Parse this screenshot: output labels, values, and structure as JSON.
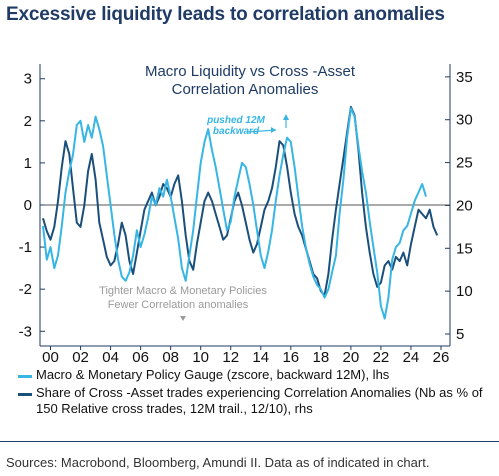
{
  "header": {
    "title": "Excessive liquidity leads to correlation anomalies"
  },
  "footer": {
    "source": "Sources: Macrobond, Bloomberg, Amundi II. Data as of indicated in chart."
  },
  "chart_data": {
    "type": "line",
    "title_line1": "Macro Liquidity vs Cross  -Asset",
    "title_line2": "Correlation Anomalies",
    "x_ticks": [
      "00",
      "02",
      "04",
      "06",
      "08",
      "10",
      "12",
      "14",
      "16",
      "18",
      "20",
      "22",
      "24",
      "26"
    ],
    "xlim": [
      1999.3,
      2026.6
    ],
    "ylim_left": [
      -3.35,
      3.35
    ],
    "ylim_right": [
      3.6,
      36.5
    ],
    "left_ticks": [
      "3",
      "2",
      "1",
      "0",
      "-1",
      "-2",
      "-3"
    ],
    "right_ticks": [
      "35",
      "30",
      "25",
      "20",
      "15",
      "10",
      "5"
    ],
    "grid": false,
    "zero_line": true,
    "annotations": {
      "arrow_label_1": "pushed 12M",
      "arrow_label_2": "backward",
      "note_line1": "Tighter Macro & Monetary Policies",
      "note_line2": "Fewer Correlation anomalies"
    },
    "colors": {
      "light": "#37b5e5",
      "dark": "#1b4f7b",
      "axis": "#1f3b66",
      "title": "#1f3b66"
    },
    "series": [
      {
        "name": "Macro & Monetary Policy Gauge (zscore, backward 12M), lhs",
        "axis": "left",
        "points": [
          [
            1999.5,
            -0.5
          ],
          [
            1999.75,
            -1.3
          ],
          [
            2000.0,
            -1.0
          ],
          [
            2000.25,
            -1.5
          ],
          [
            2000.5,
            -1.2
          ],
          [
            2000.75,
            -0.5
          ],
          [
            2001.0,
            0.3
          ],
          [
            2001.25,
            0.8
          ],
          [
            2001.5,
            1.2
          ],
          [
            2001.75,
            1.9
          ],
          [
            2002.0,
            2.0
          ],
          [
            2002.25,
            1.5
          ],
          [
            2002.5,
            1.9
          ],
          [
            2002.75,
            1.6
          ],
          [
            2003.0,
            2.1
          ],
          [
            2003.25,
            1.8
          ],
          [
            2003.5,
            1.4
          ],
          [
            2003.75,
            0.7
          ],
          [
            2004.0,
            0.0
          ],
          [
            2004.25,
            -0.7
          ],
          [
            2004.5,
            -1.3
          ],
          [
            2004.75,
            -1.7
          ],
          [
            2005.0,
            -1.8
          ],
          [
            2005.25,
            -1.6
          ],
          [
            2005.5,
            -1.2
          ],
          [
            2005.75,
            -0.6
          ],
          [
            2006.0,
            -1.0
          ],
          [
            2006.25,
            -0.7
          ],
          [
            2006.5,
            -0.3
          ],
          [
            2006.75,
            0.2
          ],
          [
            2007.0,
            0.0
          ],
          [
            2007.25,
            0.4
          ],
          [
            2007.5,
            0.2
          ],
          [
            2007.75,
            0.6
          ],
          [
            2008.0,
            0.2
          ],
          [
            2008.25,
            -0.3
          ],
          [
            2008.5,
            -0.8
          ],
          [
            2008.75,
            -1.5
          ],
          [
            2009.0,
            -1.8
          ],
          [
            2009.25,
            -1.2
          ],
          [
            2009.5,
            -0.6
          ],
          [
            2009.75,
            0.2
          ],
          [
            2010.0,
            1.0
          ],
          [
            2010.25,
            1.5
          ],
          [
            2010.5,
            1.8
          ],
          [
            2010.75,
            1.3
          ],
          [
            2011.0,
            0.9
          ],
          [
            2011.25,
            0.4
          ],
          [
            2011.5,
            -0.1
          ],
          [
            2011.75,
            -0.6
          ],
          [
            2012.0,
            -0.4
          ],
          [
            2012.25,
            0.2
          ],
          [
            2012.5,
            0.6
          ],
          [
            2012.75,
            1.0
          ],
          [
            2013.0,
            0.9
          ],
          [
            2013.25,
            0.5
          ],
          [
            2013.5,
            0.0
          ],
          [
            2013.75,
            -0.6
          ],
          [
            2014.0,
            -1.2
          ],
          [
            2014.25,
            -1.5
          ],
          [
            2014.5,
            -1.1
          ],
          [
            2014.75,
            -0.6
          ],
          [
            2015.0,
            0.1
          ],
          [
            2015.25,
            0.7
          ],
          [
            2015.5,
            1.2
          ],
          [
            2015.75,
            1.6
          ],
          [
            2016.0,
            1.5
          ],
          [
            2016.25,
            0.9
          ],
          [
            2016.5,
            0.2
          ],
          [
            2016.75,
            -0.5
          ],
          [
            2017.0,
            -1.0
          ],
          [
            2017.25,
            -1.4
          ],
          [
            2017.5,
            -1.7
          ],
          [
            2017.75,
            -1.9
          ],
          [
            2018.0,
            -2.0
          ],
          [
            2018.25,
            -2.2
          ],
          [
            2018.5,
            -2.0
          ],
          [
            2018.75,
            -1.6
          ],
          [
            2019.0,
            -1.2
          ],
          [
            2019.25,
            -0.2
          ],
          [
            2019.5,
            0.6
          ],
          [
            2019.75,
            1.6
          ],
          [
            2020.0,
            2.3
          ],
          [
            2020.25,
            2.1
          ],
          [
            2020.5,
            1.4
          ],
          [
            2020.75,
            0.8
          ],
          [
            2021.0,
            0.3
          ],
          [
            2021.25,
            -0.4
          ],
          [
            2021.5,
            -1.0
          ],
          [
            2021.75,
            -1.6
          ],
          [
            2022.0,
            -2.4
          ],
          [
            2022.25,
            -2.7
          ],
          [
            2022.5,
            -2.2
          ],
          [
            2022.75,
            -1.3
          ],
          [
            2023.0,
            -1.0
          ],
          [
            2023.25,
            -0.9
          ],
          [
            2023.5,
            -0.6
          ],
          [
            2023.75,
            -0.5
          ],
          [
            2024.0,
            -0.2
          ],
          [
            2024.25,
            0.1
          ],
          [
            2024.5,
            0.3
          ],
          [
            2024.75,
            0.5
          ],
          [
            2025.0,
            0.2
          ]
        ]
      },
      {
        "name": "Share of Cross -Asset trades experiencing Correlation Anomalies (Nb as % of 150 Relative cross trades, 12M trail., 12/10), rhs",
        "axis": "right",
        "points": [
          [
            1999.5,
            18.5
          ],
          [
            1999.75,
            17.0
          ],
          [
            2000.0,
            16.0
          ],
          [
            2000.25,
            17.5
          ],
          [
            2000.5,
            20.5
          ],
          [
            2000.75,
            24.5
          ],
          [
            2001.0,
            27.5
          ],
          [
            2001.25,
            26.0
          ],
          [
            2001.5,
            22.0
          ],
          [
            2001.75,
            18.0
          ],
          [
            2002.0,
            17.5
          ],
          [
            2002.25,
            20.0
          ],
          [
            2002.5,
            24.0
          ],
          [
            2002.75,
            26.0
          ],
          [
            2003.0,
            23.0
          ],
          [
            2003.25,
            18.0
          ],
          [
            2003.5,
            16.0
          ],
          [
            2003.75,
            14.0
          ],
          [
            2004.0,
            13.0
          ],
          [
            2004.25,
            13.5
          ],
          [
            2004.5,
            15.5
          ],
          [
            2004.75,
            18.0
          ],
          [
            2005.0,
            16.5
          ],
          [
            2005.25,
            13.5
          ],
          [
            2005.5,
            12.0
          ],
          [
            2005.75,
            14.5
          ],
          [
            2006.0,
            17.0
          ],
          [
            2006.25,
            19.5
          ],
          [
            2006.5,
            20.5
          ],
          [
            2006.75,
            21.5
          ],
          [
            2007.0,
            20.0
          ],
          [
            2007.25,
            21.0
          ],
          [
            2007.5,
            22.5
          ],
          [
            2007.75,
            22.0
          ],
          [
            2008.0,
            21.0
          ],
          [
            2008.25,
            22.5
          ],
          [
            2008.5,
            23.5
          ],
          [
            2008.75,
            20.5
          ],
          [
            2009.0,
            16.5
          ],
          [
            2009.25,
            13.5
          ],
          [
            2009.5,
            12.5
          ],
          [
            2009.75,
            15.5
          ],
          [
            2010.0,
            18.0
          ],
          [
            2010.25,
            20.5
          ],
          [
            2010.5,
            21.5
          ],
          [
            2010.75,
            20.5
          ],
          [
            2011.0,
            19.0
          ],
          [
            2011.25,
            17.5
          ],
          [
            2011.5,
            16.0
          ],
          [
            2011.75,
            16.5
          ],
          [
            2012.0,
            18.5
          ],
          [
            2012.25,
            20.5
          ],
          [
            2012.5,
            21.5
          ],
          [
            2012.75,
            20.0
          ],
          [
            2013.0,
            18.0
          ],
          [
            2013.25,
            16.0
          ],
          [
            2013.5,
            14.5
          ],
          [
            2013.75,
            15.5
          ],
          [
            2014.0,
            17.5
          ],
          [
            2014.25,
            19.5
          ],
          [
            2014.5,
            20.5
          ],
          [
            2014.75,
            22.0
          ],
          [
            2015.0,
            24.5
          ],
          [
            2015.25,
            27.5
          ],
          [
            2015.5,
            27.0
          ],
          [
            2015.75,
            24.5
          ],
          [
            2016.0,
            21.5
          ],
          [
            2016.25,
            19.0
          ],
          [
            2016.5,
            17.5
          ],
          [
            2016.75,
            16.5
          ],
          [
            2017.0,
            15.0
          ],
          [
            2017.25,
            13.5
          ],
          [
            2017.5,
            12.0
          ],
          [
            2017.75,
            11.5
          ],
          [
            2018.0,
            10.0
          ],
          [
            2018.25,
            9.5
          ],
          [
            2018.5,
            12.0
          ],
          [
            2018.75,
            16.0
          ],
          [
            2019.0,
            19.5
          ],
          [
            2019.25,
            22.5
          ],
          [
            2019.5,
            25.5
          ],
          [
            2019.75,
            28.5
          ],
          [
            2020.0,
            31.5
          ],
          [
            2020.25,
            30.5
          ],
          [
            2020.5,
            26.5
          ],
          [
            2020.75,
            21.5
          ],
          [
            2021.0,
            17.5
          ],
          [
            2021.25,
            14.5
          ],
          [
            2021.5,
            12.0
          ],
          [
            2021.75,
            10.5
          ],
          [
            2022.0,
            11.0
          ],
          [
            2022.25,
            13.0
          ],
          [
            2022.5,
            13.5
          ],
          [
            2022.75,
            12.5
          ],
          [
            2023.0,
            14.0
          ],
          [
            2023.25,
            13.5
          ],
          [
            2023.5,
            14.5
          ],
          [
            2023.75,
            13.0
          ],
          [
            2024.0,
            15.5
          ],
          [
            2024.25,
            17.5
          ],
          [
            2024.5,
            19.5
          ],
          [
            2024.75,
            19.0
          ],
          [
            2025.0,
            18.5
          ],
          [
            2025.25,
            19.5
          ],
          [
            2025.5,
            17.5
          ],
          [
            2025.75,
            16.5
          ]
        ]
      }
    ]
  }
}
